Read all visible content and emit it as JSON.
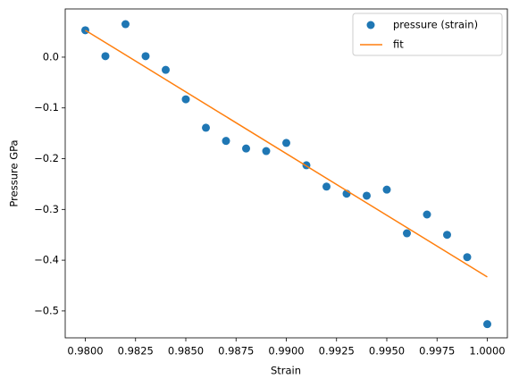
{
  "chart_data": {
    "type": "scatter",
    "xlabel": "Strain",
    "ylabel": "Pressure GPa",
    "xlim": [
      0.979,
      1.001
    ],
    "ylim": [
      -0.553,
      0.095
    ],
    "xticks": [
      {
        "value": 0.98,
        "label": "0.9800"
      },
      {
        "value": 0.9825,
        "label": "0.9825"
      },
      {
        "value": 0.985,
        "label": "0.9850"
      },
      {
        "value": 0.9875,
        "label": "0.9875"
      },
      {
        "value": 0.99,
        "label": "0.9900"
      },
      {
        "value": 0.9925,
        "label": "0.9925"
      },
      {
        "value": 0.995,
        "label": "0.9950"
      },
      {
        "value": 0.9975,
        "label": "0.9975"
      },
      {
        "value": 1.0,
        "label": "1.0000"
      }
    ],
    "yticks": [
      {
        "value": 0.0,
        "label": "0.0"
      },
      {
        "value": -0.1,
        "label": "−0.1"
      },
      {
        "value": -0.2,
        "label": "−0.2"
      },
      {
        "value": -0.3,
        "label": "−0.3"
      },
      {
        "value": -0.4,
        "label": "−0.4"
      },
      {
        "value": -0.5,
        "label": "−0.5"
      }
    ],
    "legend": "upper right",
    "series": [
      {
        "name": "pressure (strain)",
        "color": "#1f77b4",
        "type": "scatter",
        "x": [
          0.98,
          0.981,
          0.982,
          0.983,
          0.984,
          0.985,
          0.986,
          0.987,
          0.988,
          0.989,
          0.99,
          0.991,
          0.992,
          0.993,
          0.994,
          0.995,
          0.996,
          0.997,
          0.998,
          0.999,
          1.0
        ],
        "values": [
          0.053,
          0.002,
          0.065,
          0.002,
          -0.025,
          -0.083,
          -0.139,
          -0.165,
          -0.18,
          -0.185,
          -0.169,
          -0.213,
          -0.255,
          -0.269,
          -0.273,
          -0.261,
          -0.347,
          -0.31,
          -0.35,
          -0.394,
          -0.526
        ]
      },
      {
        "name": "fit",
        "color": "#ff7f0e",
        "type": "line",
        "x": [
          0.98,
          1.0
        ],
        "values": [
          0.053,
          -0.433
        ]
      }
    ]
  }
}
